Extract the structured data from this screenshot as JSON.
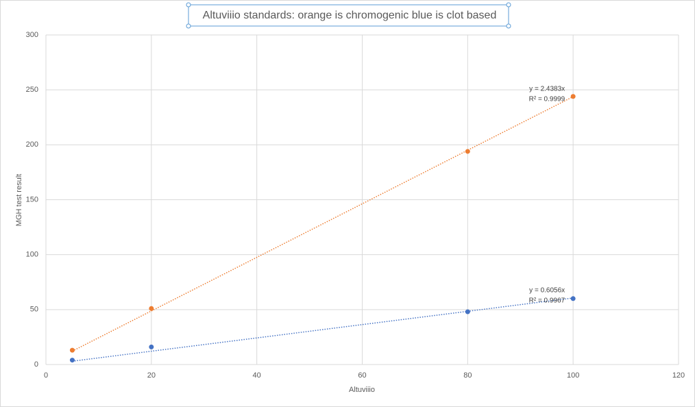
{
  "chart_data": {
    "type": "scatter",
    "title": "Altuviiio standards: orange is chromogenic blue is clot based",
    "x_label": "Altuviiio",
    "y_label": "MGH test result",
    "xlim": [
      0,
      120
    ],
    "xticks": [
      0,
      20,
      40,
      60,
      80,
      100,
      120
    ],
    "ylim": [
      0,
      300
    ],
    "yticks": [
      0,
      50,
      100,
      150,
      200,
      250,
      300
    ],
    "grid": true,
    "series": [
      {
        "color": "#4472c4",
        "x": [
          5,
          20,
          80,
          100
        ],
        "values": [
          4,
          16,
          48,
          60
        ],
        "trendline": {
          "slope": 0.6056,
          "label": "y = 0.6056x",
          "r2_label": "R² = 0.9967"
        }
      },
      {
        "color": "#ed7d31",
        "x": [
          5,
          20,
          80,
          100
        ],
        "values": [
          13,
          51,
          194,
          244
        ],
        "trendline": {
          "slope": 2.4383,
          "label": "y = 2.4383x",
          "r2_label": "R² = 0.9999"
        }
      }
    ]
  }
}
